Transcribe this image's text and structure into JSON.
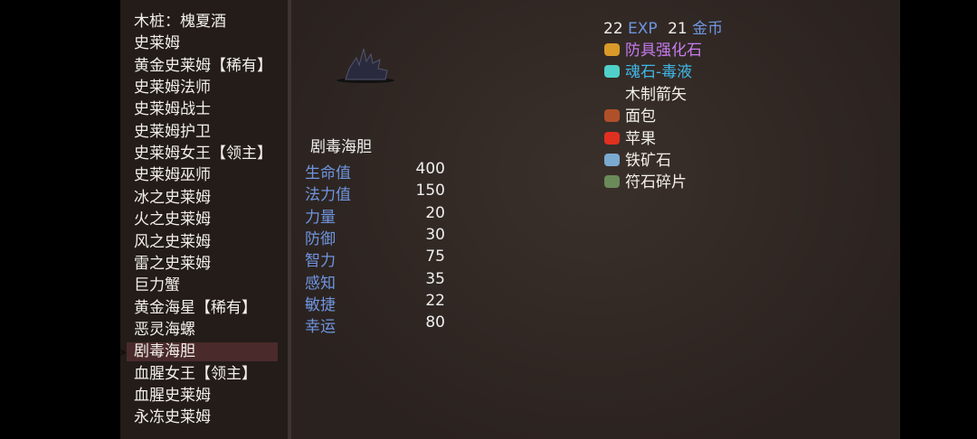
{
  "monster_list": [
    "木桩：槐夏酒",
    "史莱姆",
    "黄金史莱姆【稀有】",
    "史莱姆法师",
    "史莱姆战士",
    "史莱姆护卫",
    "史莱姆女王【领主】",
    "史莱姆巫师",
    "冰之史莱姆",
    "火之史莱姆",
    "风之史莱姆",
    "雷之史莱姆",
    "巨力蟹",
    "黄金海星【稀有】",
    "恶灵海螺",
    "剧毒海胆",
    "血腥女王【领主】",
    "血腥史莱姆",
    "永冻史莱姆"
  ],
  "selected_index": 15,
  "detail": {
    "name": "剧毒海胆",
    "stats": [
      {
        "label": "生命值",
        "value": "400"
      },
      {
        "label": "法力值",
        "value": "150"
      },
      {
        "label": "力量",
        "value": "20"
      },
      {
        "label": "防御",
        "value": "30"
      },
      {
        "label": "智力",
        "value": "75"
      },
      {
        "label": "感知",
        "value": "35"
      },
      {
        "label": "敏捷",
        "value": "22"
      },
      {
        "label": "幸运",
        "value": "80"
      }
    ]
  },
  "rewards": {
    "exp": "22",
    "exp_label": "EXP",
    "gold": "21",
    "gold_label": "金币",
    "drops": [
      {
        "name": "防具强化石",
        "icon": "gold-gem-icon",
        "color": "#c77bf0",
        "icon_color": "#d99a2a"
      },
      {
        "name": "魂石-毒液",
        "icon": "soulstone-icon",
        "color": "#3fb7e6",
        "icon_color": "#4fd0c8"
      },
      {
        "name": "木制箭矢",
        "icon": "arrow-icon",
        "color": "#f2efe9",
        "icon_color": "#6a5a4a"
      },
      {
        "name": "面包",
        "icon": "bread-icon",
        "color": "#f2efe9",
        "icon_color": "#b0502a"
      },
      {
        "name": "苹果",
        "icon": "apple-icon",
        "color": "#f2efe9",
        "icon_color": "#e03020"
      },
      {
        "name": "铁矿石",
        "icon": "iron-ore-icon",
        "color": "#f2efe9",
        "icon_color": "#7aaad0"
      },
      {
        "name": "符石碎片",
        "icon": "rune-shard-icon",
        "color": "#f2efe9",
        "icon_color": "#6a8a5a"
      }
    ]
  }
}
